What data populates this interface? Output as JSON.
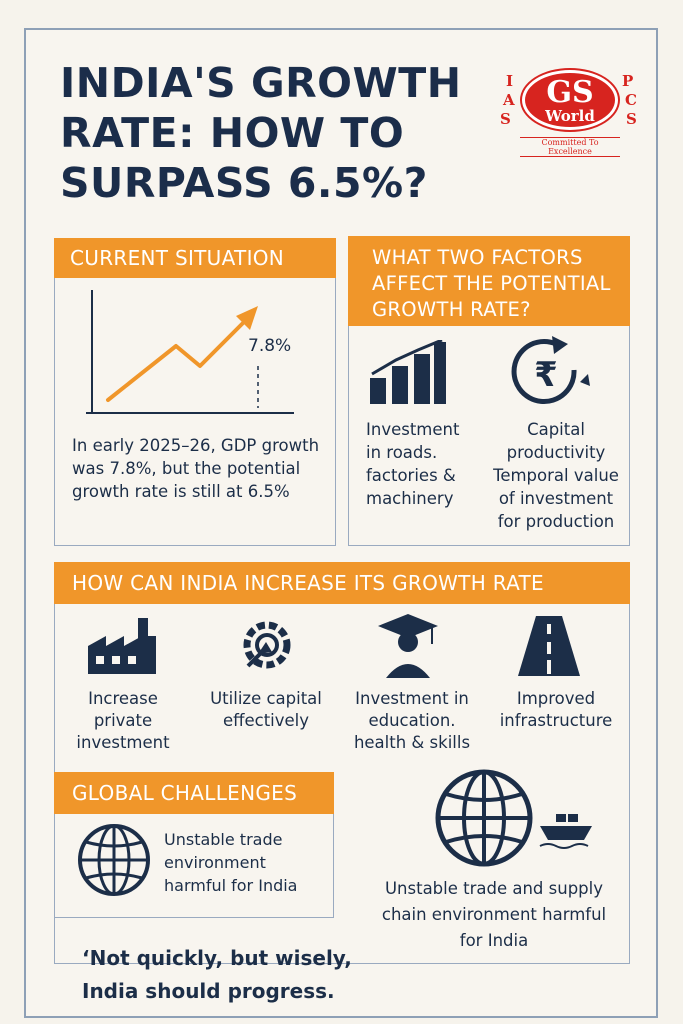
{
  "title": "INDIA'S GROWTH RATE: HOW TO SURPASS 6.5%?",
  "logo": {
    "left_letters": [
      "I",
      "A",
      "S"
    ],
    "right_letters": [
      "P",
      "C",
      "S"
    ],
    "gs": "GS",
    "world": "World",
    "tagline": "Committed To Excellence"
  },
  "current_situation": {
    "header": "CURRENT SITUATION",
    "chart_label": "7.8%",
    "description": "In early 2025–26, GDP growth was 7.8%, but the potential growth rate is still at 6.5%"
  },
  "factors": {
    "header": "WHAT TWO FACTORS AFFECT THE POTENTIAL GROWTH RATE?",
    "items": [
      {
        "icon": "bar-chart-icon",
        "text": "Investment in roads. factories & machinery"
      },
      {
        "icon": "rupee-cycle-icon",
        "text": "Capital productivity Temporal value of investment for production"
      }
    ]
  },
  "increase": {
    "header": "HOW CAN INDIA INCREASE ITS GROWTH RATE",
    "items": [
      {
        "icon": "factory-icon",
        "text": "Increase private investment"
      },
      {
        "icon": "gear-arrow-icon",
        "text": "Utilize capital effectively"
      },
      {
        "icon": "graduate-icon",
        "text": "Investment in education. health & skills"
      },
      {
        "icon": "road-icon",
        "text": "Improved infrastructure"
      }
    ]
  },
  "global": {
    "header": "GLOBAL CHALLENGES",
    "item_text": "Unstable trade environment harmful for India",
    "right_text": "Unstable trade and supply chain environment harmful for India"
  },
  "quote": "‘Not quickly, but wisely, India should progress."
}
